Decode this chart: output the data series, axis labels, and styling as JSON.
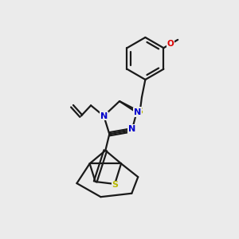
{
  "background_color": "#ebebeb",
  "bond_color": "#1a1a1a",
  "sulfur_color": "#b8b800",
  "nitrogen_color": "#0000cc",
  "oxygen_color": "#dd0000",
  "line_width": 1.6,
  "figsize": [
    3.0,
    3.0
  ],
  "dpi": 100,
  "xlim": [
    0,
    10
  ],
  "ylim": [
    0,
    10
  ]
}
